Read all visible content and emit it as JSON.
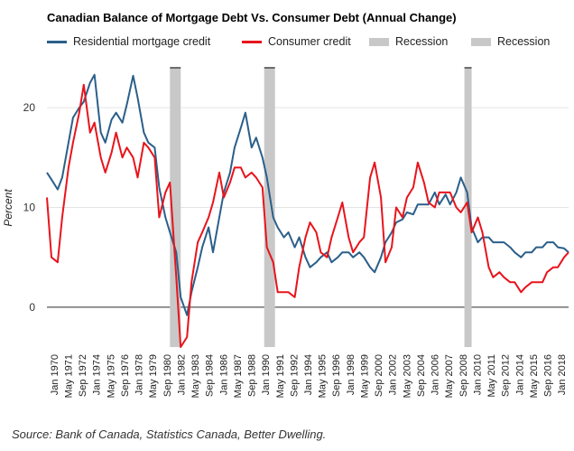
{
  "chart_data": {
    "type": "line",
    "title": "Canadian Balance of Mortgage Debt Vs. Consumer Debt (Annual Change)",
    "ylabel": "Percent",
    "xlabel": "",
    "ylim": [
      -4,
      24
    ],
    "xlim": [
      "1970-01",
      "2018-06"
    ],
    "y_ticks": [
      0,
      10,
      20
    ],
    "x_tick_labels": [
      "Jan 1970",
      "May 1971",
      "Sep 1972",
      "Jan 1974",
      "May 1975",
      "Sep 1976",
      "Jan 1978",
      "May 1979",
      "Sep 1980",
      "Jan 1982",
      "May 1983",
      "Sep 1984",
      "Jan 1986",
      "May 1987",
      "Sep 1988",
      "Jan 1990",
      "May 1991",
      "Sep 1992",
      "Jan 1994",
      "May 1995",
      "Sep 1996",
      "Jan 1998",
      "May 1999",
      "Sep 2000",
      "Jan 2002",
      "May 2003",
      "Sep 2004",
      "Jan 2006",
      "May 2007",
      "Sep 2008",
      "Jan 2010",
      "May 2011",
      "Sep 2012",
      "Jan 2014",
      "May 2015",
      "Sep 2016",
      "Jan 2018"
    ],
    "grid": true,
    "legend_position": "top",
    "recessions": [
      {
        "start": "1981-06",
        "end": "1982-06"
      },
      {
        "start": "1990-03",
        "end": "1991-03"
      },
      {
        "start": "2008-10",
        "end": "2009-06"
      }
    ],
    "series": [
      {
        "name": "Residential mortgage credit",
        "color": "#2b5f8a",
        "x": [
          "1970-01",
          "1970-06",
          "1971-01",
          "1971-06",
          "1972-01",
          "1972-06",
          "1973-01",
          "1973-06",
          "1974-01",
          "1974-06",
          "1975-01",
          "1975-06",
          "1976-01",
          "1976-06",
          "1977-01",
          "1977-06",
          "1978-01",
          "1978-06",
          "1979-01",
          "1979-06",
          "1980-01",
          "1980-06",
          "1981-01",
          "1981-06",
          "1982-01",
          "1982-06",
          "1983-01",
          "1983-06",
          "1984-01",
          "1984-06",
          "1985-01",
          "1985-06",
          "1986-01",
          "1986-06",
          "1987-01",
          "1987-06",
          "1988-01",
          "1988-06",
          "1989-01",
          "1989-06",
          "1990-01",
          "1990-06",
          "1991-01",
          "1991-06",
          "1992-01",
          "1992-06",
          "1993-01",
          "1993-06",
          "1994-01",
          "1994-06",
          "1995-01",
          "1995-06",
          "1996-01",
          "1996-06",
          "1997-01",
          "1997-06",
          "1998-01",
          "1998-06",
          "1999-01",
          "1999-06",
          "2000-01",
          "2000-06",
          "2001-01",
          "2001-06",
          "2002-01",
          "2002-06",
          "2003-01",
          "2003-06",
          "2004-01",
          "2004-06",
          "2005-01",
          "2005-06",
          "2006-01",
          "2006-06",
          "2007-01",
          "2007-06",
          "2008-01",
          "2008-06",
          "2009-01",
          "2009-06",
          "2010-01",
          "2010-06",
          "2011-01",
          "2011-06",
          "2012-01",
          "2012-06",
          "2013-01",
          "2013-06",
          "2014-01",
          "2014-06",
          "2015-01",
          "2015-06",
          "2016-01",
          "2016-06",
          "2017-01",
          "2017-06",
          "2018-01",
          "2018-06"
        ],
        "values": [
          13.5,
          12.8,
          11.8,
          13.0,
          16.5,
          19.0,
          20.0,
          20.6,
          22.5,
          23.3,
          17.5,
          16.5,
          18.8,
          19.5,
          18.5,
          20.3,
          23.2,
          21.0,
          17.5,
          16.5,
          16.0,
          12.0,
          9.0,
          7.5,
          5.5,
          1.0,
          -0.8,
          1.5,
          4.0,
          6.0,
          8.0,
          5.5,
          9.0,
          11.5,
          13.5,
          16.0,
          18.0,
          19.5,
          16.0,
          17.0,
          15.0,
          13.0,
          9.0,
          8.0,
          7.0,
          7.5,
          6.0,
          7.0,
          5.0,
          4.0,
          4.5,
          5.0,
          5.5,
          4.5,
          5.0,
          5.5,
          5.5,
          5.0,
          5.5,
          5.0,
          4.0,
          3.5,
          5.0,
          6.5,
          7.5,
          8.5,
          8.8,
          9.5,
          9.3,
          10.3,
          10.3,
          10.3,
          11.5,
          10.3,
          11.3,
          10.3,
          11.5,
          13.0,
          11.5,
          8.0,
          6.5,
          7.0,
          7.0,
          6.5,
          6.5,
          6.5,
          6.0,
          5.5,
          5.0,
          5.5,
          5.5,
          6.0,
          6.0,
          6.5,
          6.5,
          6.0,
          5.9,
          5.5
        ]
      },
      {
        "name": "Consumer credit",
        "color": "#e8141c",
        "x": [
          "1970-01",
          "1970-06",
          "1971-01",
          "1971-06",
          "1972-01",
          "1972-06",
          "1973-01",
          "1973-06",
          "1974-01",
          "1974-06",
          "1975-01",
          "1975-06",
          "1976-01",
          "1976-06",
          "1977-01",
          "1977-06",
          "1978-01",
          "1978-06",
          "1979-01",
          "1979-06",
          "1980-01",
          "1980-06",
          "1981-01",
          "1981-06",
          "1982-01",
          "1982-06",
          "1983-01",
          "1983-06",
          "1984-01",
          "1984-06",
          "1985-01",
          "1985-06",
          "1986-01",
          "1986-06",
          "1987-01",
          "1987-06",
          "1988-01",
          "1988-06",
          "1989-01",
          "1989-06",
          "1990-01",
          "1990-06",
          "1991-01",
          "1991-06",
          "1992-01",
          "1992-06",
          "1993-01",
          "1993-06",
          "1994-01",
          "1994-06",
          "1995-01",
          "1995-06",
          "1996-01",
          "1996-06",
          "1997-01",
          "1997-06",
          "1998-01",
          "1998-06",
          "1999-01",
          "1999-06",
          "2000-01",
          "2000-06",
          "2001-01",
          "2001-06",
          "2002-01",
          "2002-06",
          "2003-01",
          "2003-06",
          "2004-01",
          "2004-06",
          "2005-01",
          "2005-06",
          "2006-01",
          "2006-06",
          "2007-01",
          "2007-06",
          "2008-01",
          "2008-06",
          "2009-01",
          "2009-06",
          "2010-01",
          "2010-06",
          "2011-01",
          "2011-06",
          "2012-01",
          "2012-06",
          "2013-01",
          "2013-06",
          "2014-01",
          "2014-06",
          "2015-01",
          "2015-06",
          "2016-01",
          "2016-06",
          "2017-01",
          "2017-06",
          "2018-01",
          "2018-06"
        ],
        "values": [
          11.0,
          5.0,
          4.5,
          9.0,
          14.0,
          16.5,
          19.5,
          22.3,
          17.5,
          18.5,
          15.0,
          13.5,
          15.5,
          17.5,
          15.0,
          16.0,
          15.0,
          13.0,
          16.5,
          16.0,
          15.0,
          9.0,
          11.5,
          12.5,
          3.0,
          -4.0,
          -3.0,
          2.5,
          6.5,
          7.5,
          9.0,
          10.5,
          13.5,
          11.0,
          12.5,
          14.0,
          14.0,
          13.0,
          13.5,
          13.0,
          12.0,
          6.0,
          4.5,
          1.5,
          1.5,
          1.5,
          1.0,
          4.0,
          7.0,
          8.5,
          7.5,
          5.5,
          5.0,
          7.0,
          9.0,
          10.5,
          7.0,
          5.5,
          6.5,
          7.0,
          13.0,
          14.5,
          11.0,
          4.5,
          6.0,
          10.0,
          9.0,
          11.0,
          12.0,
          14.5,
          12.5,
          10.5,
          10.0,
          11.5,
          11.5,
          11.5,
          10.0,
          9.5,
          10.5,
          7.5,
          9.0,
          7.5,
          4.0,
          3.0,
          3.5,
          3.0,
          2.5,
          2.5,
          1.5,
          2.0,
          2.5,
          2.5,
          2.5,
          3.5,
          4.0,
          4.0,
          5.0,
          5.5
        ]
      }
    ]
  },
  "legend": {
    "mortgage": "Residential mortgage credit",
    "consumer": "Consumer credit",
    "recession_a": "Recession",
    "recession_b": "Recession"
  },
  "source": "Source: Bank of Canada, Statistics Canada, Better Dwelling.",
  "colors": {
    "mortgage": "#2b5f8a",
    "consumer": "#e8141c",
    "recession": "#c8c8c8",
    "grid": "#e3e3e3",
    "zero_line": "#555555"
  }
}
